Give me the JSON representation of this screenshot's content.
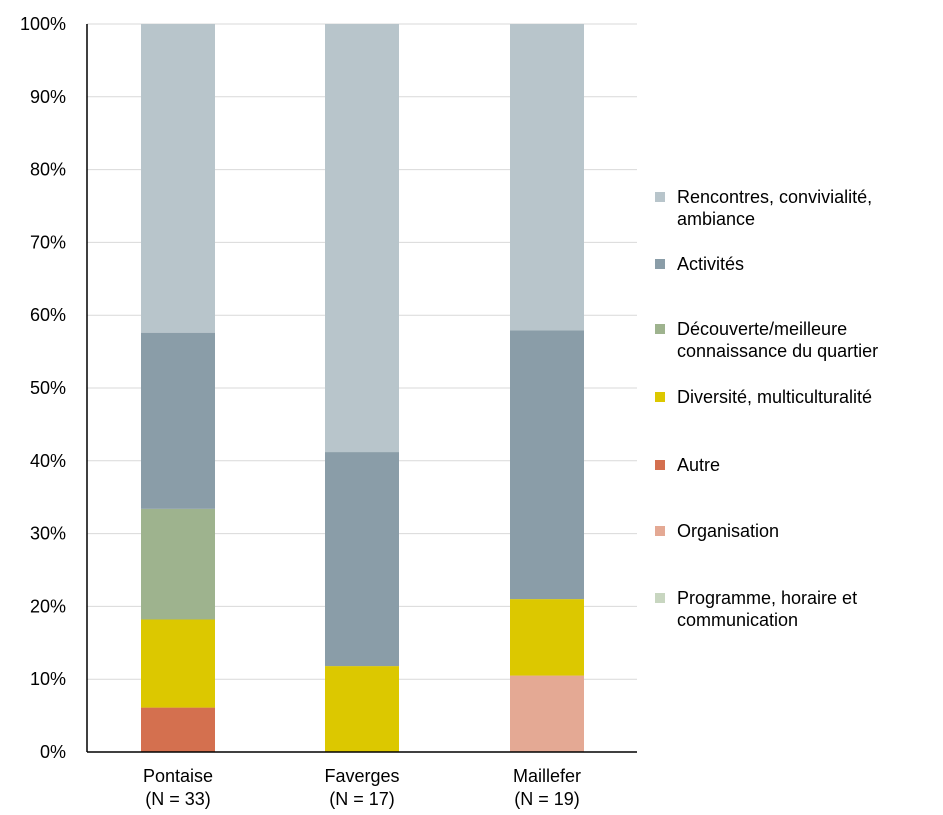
{
  "chart_data": {
    "type": "bar",
    "stacked": true,
    "categories": [
      "Pontaise\n(N = 33)",
      "Faverges\n(N = 17)",
      "Maillefer\n(N = 19)"
    ],
    "series": [
      {
        "name": "Autre",
        "color": "#D4704F",
        "values": [
          6.1,
          0,
          0
        ]
      },
      {
        "name": "Organisation",
        "color": "#E4A994",
        "values": [
          0,
          0,
          10.5
        ]
      },
      {
        "name": "Diversité, multiculturalité",
        "color": "#DCC800",
        "values": [
          12.1,
          11.8,
          10.5
        ]
      },
      {
        "name": "Programme, horaire et communication",
        "color": "#C8D6C0",
        "values": [
          0,
          0,
          0
        ]
      },
      {
        "name": "Découverte/meilleure connaissance du quartier",
        "color": "#9EB38E",
        "values": [
          15.2,
          0,
          0
        ]
      },
      {
        "name": "Activités",
        "color": "#8A9DA8",
        "values": [
          24.2,
          29.4,
          36.9
        ]
      },
      {
        "name": "Rencontres, convivialité, ambiance",
        "color": "#B8C5CB",
        "values": [
          42.4,
          58.8,
          42.1
        ]
      }
    ],
    "ylim": [
      0,
      100
    ],
    "yticks": [
      "0%",
      "10%",
      "20%",
      "30%",
      "40%",
      "50%",
      "60%",
      "70%",
      "80%",
      "90%",
      "100%"
    ],
    "grid": true,
    "legend_position": "right",
    "legend_order": [
      "Rencontres, convivialité, ambiance",
      "Activités",
      "Découverte/meilleure connaissance du quartier",
      "Diversité, multiculturalité",
      "Autre",
      "Organisation",
      "Programme, horaire et communication"
    ],
    "legend_labels": [
      "Rencontres, convivialité,\nambiance",
      "Activités",
      "Découverte/meilleure\nconnaissance du quartier",
      "Diversité, multiculturalité",
      "Autre",
      "Organisation",
      "Programme, horaire et\ncommunication"
    ]
  }
}
